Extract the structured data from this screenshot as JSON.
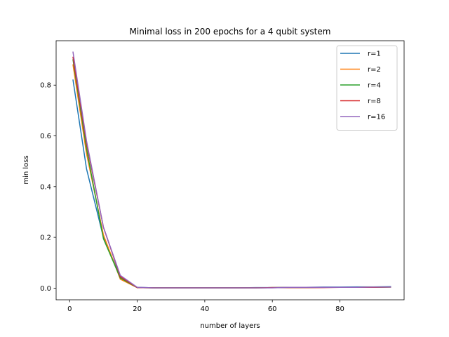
{
  "chart_data": {
    "type": "line",
    "title": "Minimal loss in 200 epochs for a 4 qubit system",
    "xlabel": "number of layers",
    "ylabel": "min loss",
    "xlim": [
      -4,
      99
    ],
    "ylim": [
      -0.046,
      0.975
    ],
    "xticks": [
      0,
      20,
      40,
      60,
      80
    ],
    "yticks": [
      0.0,
      0.2,
      0.4,
      0.6,
      0.8
    ],
    "ytick_labels": [
      "0.0",
      "0.2",
      "0.4",
      "0.6",
      "0.8"
    ],
    "grid": false,
    "legend_position": "top-right",
    "x": [
      1,
      5,
      10,
      15,
      20,
      25,
      30,
      35,
      40,
      45,
      50,
      55,
      60,
      65,
      70,
      75,
      80,
      85,
      90,
      95
    ],
    "series": [
      {
        "name": "r=1",
        "color": "#1f77b4",
        "values": [
          0.82,
          0.47,
          0.2,
          0.045,
          0.003,
          0.001,
          0.001,
          0.001,
          0.001,
          0.001,
          0.001,
          0.002,
          0.002,
          0.003,
          0.003,
          0.004,
          0.004,
          0.005,
          0.005,
          0.006
        ]
      },
      {
        "name": "r=2",
        "color": "#ff7f0e",
        "values": [
          0.88,
          0.53,
          0.21,
          0.035,
          0.002,
          0.001,
          0.001,
          0.001,
          0.001,
          0.001,
          0.001,
          0.001,
          0.002,
          0.002,
          0.002,
          0.003,
          0.003,
          0.003,
          0.004,
          0.004
        ]
      },
      {
        "name": "r=4",
        "color": "#2ca02c",
        "values": [
          0.9,
          0.55,
          0.195,
          0.04,
          0.002,
          0.001,
          0.001,
          0.001,
          0.001,
          0.001,
          0.001,
          0.001,
          0.002,
          0.002,
          0.002,
          0.003,
          0.003,
          0.003,
          0.003,
          0.004
        ]
      },
      {
        "name": "r=8",
        "color": "#d62728",
        "values": [
          0.91,
          0.57,
          0.24,
          0.045,
          0.002,
          0.001,
          0.001,
          0.001,
          0.001,
          0.001,
          0.001,
          0.001,
          0.002,
          0.002,
          0.002,
          0.002,
          0.003,
          0.003,
          0.003,
          0.004
        ]
      },
      {
        "name": "r=16",
        "color": "#9467bd",
        "values": [
          0.93,
          0.58,
          0.24,
          0.05,
          0.003,
          0.001,
          0.001,
          0.001,
          0.001,
          0.001,
          0.001,
          0.001,
          0.001,
          0.003,
          0.003,
          0.003,
          0.003,
          0.003,
          0.004,
          0.004
        ]
      }
    ]
  }
}
